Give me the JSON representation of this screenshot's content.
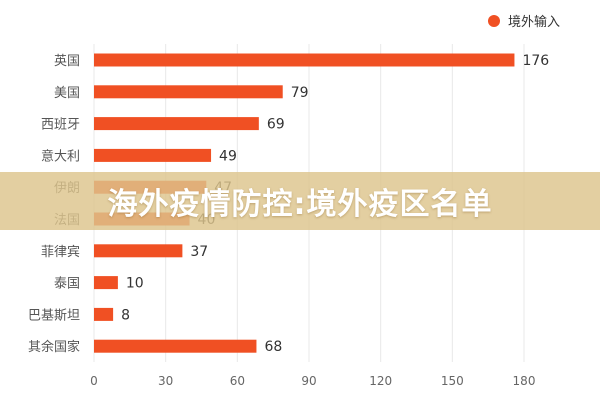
{
  "chart_data": {
    "type": "bar",
    "orientation": "horizontal",
    "categories": [
      "英国",
      "美国",
      "西班牙",
      "意大利",
      "伊朗",
      "法国",
      "菲律宾",
      "泰国",
      "巴基斯坦",
      "其余国家"
    ],
    "series": [
      {
        "name": "境外输入",
        "values": [
          176,
          79,
          69,
          49,
          47,
          40,
          37,
          10,
          8,
          68
        ]
      }
    ],
    "data_labels": [
      "176",
      "79",
      "69",
      "49",
      "47",
      "40",
      "37",
      "10",
      "8",
      "68"
    ],
    "xlim": [
      0,
      180
    ],
    "x_ticks": [
      0,
      30,
      60,
      90,
      120,
      150,
      180
    ],
    "x_tick_labels": [
      "0",
      "30",
      "60",
      "90",
      "120",
      "150",
      "180"
    ],
    "legend_position": "top-right",
    "grid": "vertical",
    "colors": {
      "bar": "#f05023",
      "grid": "#e8e8e8",
      "text": "#555555"
    }
  },
  "banner": {
    "text": "海外疫情防控:境外疫区名单"
  }
}
